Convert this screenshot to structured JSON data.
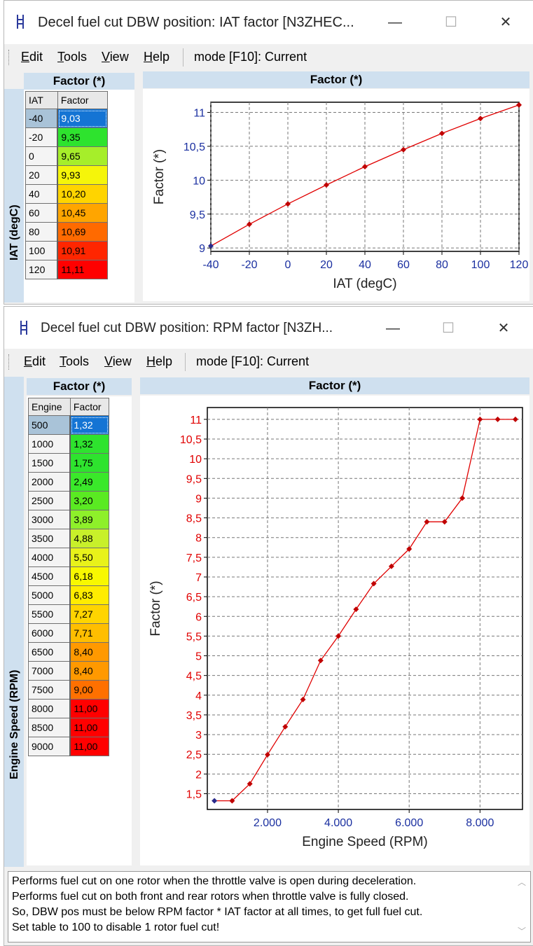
{
  "window1": {
    "title": "Decel fuel cut DBW position: IAT factor [N3ZHEC...",
    "controls": {
      "minimize": "—",
      "maximize": "☐",
      "close": "✕"
    },
    "menu": [
      "Edit",
      "Tools",
      "View",
      "Help"
    ],
    "mode": "mode [F10]: Current",
    "table_header": "Factor (*)",
    "row_axis_label": "IAT (degC)",
    "col_headers": [
      "IAT",
      "Factor"
    ],
    "rows": [
      {
        "key": "-40",
        "value": "9,03",
        "color": "#1474d4"
      },
      {
        "key": "-20",
        "value": "9,35",
        "color": "#2ee32e"
      },
      {
        "key": "0",
        "value": "9,65",
        "color": "#a6ee2a"
      },
      {
        "key": "20",
        "value": "9,93",
        "color": "#f5f50a"
      },
      {
        "key": "40",
        "value": "10,20",
        "color": "#ffd400"
      },
      {
        "key": "60",
        "value": "10,45",
        "color": "#ffa500"
      },
      {
        "key": "80",
        "value": "10,69",
        "color": "#ff6a00"
      },
      {
        "key": "100",
        "value": "10,91",
        "color": "#ff2600"
      },
      {
        "key": "120",
        "value": "11,11",
        "color": "#ff0000"
      }
    ],
    "chart_header": "Factor (*)"
  },
  "window2": {
    "title": "Decel fuel cut DBW position: RPM factor [N3ZH...",
    "controls": {
      "minimize": "—",
      "maximize": "☐",
      "close": "✕"
    },
    "menu": [
      "Edit",
      "Tools",
      "View",
      "Help"
    ],
    "mode": "mode [F10]: Current",
    "table_header": "Factor (*)",
    "row_axis_label": "Engine Speed (RPM)",
    "col_headers": [
      "Engine",
      "Factor"
    ],
    "rows": [
      {
        "key": "500",
        "value": "1,32",
        "color": "#1474d4"
      },
      {
        "key": "1000",
        "value": "1,32",
        "color": "#2ee32e"
      },
      {
        "key": "1500",
        "value": "1,75",
        "color": "#2ee32e"
      },
      {
        "key": "2000",
        "value": "2,49",
        "color": "#3ae82a"
      },
      {
        "key": "2500",
        "value": "3,20",
        "color": "#5aea22"
      },
      {
        "key": "3000",
        "value": "3,89",
        "color": "#8ef02a"
      },
      {
        "key": "3500",
        "value": "4,88",
        "color": "#c8f02a"
      },
      {
        "key": "4000",
        "value": "5,50",
        "color": "#e8f21a"
      },
      {
        "key": "4500",
        "value": "6,18",
        "color": "#f8f800"
      },
      {
        "key": "5000",
        "value": "6,83",
        "color": "#ffec00"
      },
      {
        "key": "5500",
        "value": "7,27",
        "color": "#ffd400"
      },
      {
        "key": "6000",
        "value": "7,71",
        "color": "#ffbe00"
      },
      {
        "key": "6500",
        "value": "8,40",
        "color": "#ff9900"
      },
      {
        "key": "7000",
        "value": "8,40",
        "color": "#ff9900"
      },
      {
        "key": "7500",
        "value": "9,00",
        "color": "#ff7000"
      },
      {
        "key": "8000",
        "value": "11,00",
        "color": "#ff0000"
      },
      {
        "key": "8500",
        "value": "11,00",
        "color": "#ff0000"
      },
      {
        "key": "9000",
        "value": "11,00",
        "color": "#ff0000"
      }
    ],
    "chart_header": "Factor (*)",
    "status_lines": [
      "Performs fuel cut on one rotor when the throttle valve is open during deceleration.",
      "Performs fuel cut on both front and rear rotors when throttle valve is fully closed.",
      "So, DBW pos must be below RPM factor * IAT factor at all times, to get full fuel cut.",
      "Set table to 100 to disable 1 rotor fuel cut!"
    ]
  },
  "chart_data": [
    {
      "type": "line",
      "xlabel": "IAT (degC)",
      "ylabel": "Factor (*)",
      "x": [
        -40,
        -20,
        0,
        20,
        40,
        60,
        80,
        100,
        120
      ],
      "series": [
        {
          "values": [
            9.03,
            9.35,
            9.65,
            9.93,
            10.2,
            10.45,
            10.69,
            10.91,
            11.11
          ]
        }
      ],
      "xlim": [
        -40,
        120
      ],
      "ylim": [
        8.95,
        11.15
      ],
      "xticks": [
        "-40",
        "-20",
        "0",
        "20",
        "40",
        "60",
        "80",
        "100",
        "120"
      ],
      "yticks": [
        "9",
        "9,5",
        "10",
        "10,5",
        "11"
      ],
      "grid": true,
      "line_color": "#e00000",
      "tick_color": "#1a2fa0"
    },
    {
      "type": "line",
      "xlabel": "Engine Speed (RPM)",
      "ylabel": "Factor (*)",
      "x": [
        500,
        1000,
        1500,
        2000,
        2500,
        3000,
        3500,
        4000,
        4500,
        5000,
        5500,
        6000,
        6500,
        7000,
        7500,
        8000,
        8500,
        9000
      ],
      "series": [
        {
          "values": [
            1.32,
            1.32,
            1.75,
            2.49,
            3.2,
            3.89,
            4.88,
            5.5,
            6.18,
            6.83,
            7.27,
            7.71,
            8.4,
            8.4,
            9.0,
            11.0,
            11.0,
            11.0
          ]
        }
      ],
      "xlim": [
        300,
        9200
      ],
      "ylim": [
        1.1,
        11.3
      ],
      "xticks": [
        "2.000",
        "4.000",
        "6.000",
        "8.000"
      ],
      "yticks": [
        "1,5",
        "2",
        "2,5",
        "3",
        "3,5",
        "4",
        "4,5",
        "5",
        "5,5",
        "6",
        "6,5",
        "7",
        "7,5",
        "8",
        "8,5",
        "9",
        "9,5",
        "10",
        "10,5",
        "11"
      ],
      "grid": true,
      "line_color": "#e00000",
      "tick_color": "#e00000",
      "xtick_color": "#1a2fa0"
    }
  ]
}
